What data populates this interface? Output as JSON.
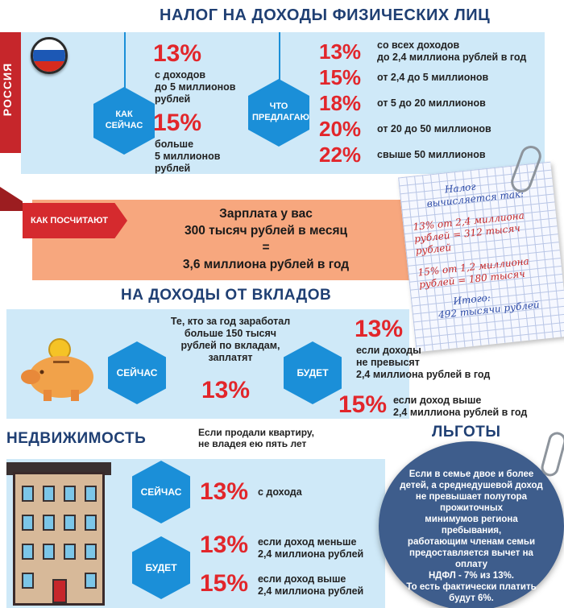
{
  "section1": {
    "title": "НАЛОГ НА ДОХОДЫ ФИЗИЧЕСКИХ ЛИЦ",
    "country": "РОССИЯ",
    "now_label": "КАК СЕЙЧАС",
    "now_items": [
      {
        "pct": "13%",
        "text_lines": [
          "с доходов",
          "до 5 миллионов",
          "рублей"
        ]
      },
      {
        "pct": "15%",
        "text_lines": [
          "больше",
          "5 миллионов",
          "рублей"
        ]
      }
    ],
    "proposal_label": "ЧТО ПРЕДЛАГАЮТ",
    "proposal_items": [
      {
        "pct": "13%",
        "text_lines": [
          "со всех доходов",
          "до 2,4 миллиона рублей в год"
        ]
      },
      {
        "pct": "15%",
        "text_lines": [
          "от 2,4 до 5 миллионов"
        ]
      },
      {
        "pct": "18%",
        "text_lines": [
          "от 5 до 20 миллионов"
        ]
      },
      {
        "pct": "20%",
        "text_lines": [
          "от 20 до 50 миллионов"
        ]
      },
      {
        "pct": "22%",
        "text_lines": [
          "свыше 50 миллионов"
        ]
      }
    ]
  },
  "calc": {
    "banner": "КАК ПОСЧИТАЮТ",
    "line1": "Зарплата у вас",
    "line2": "300 тысяч рублей в месяц",
    "line3": "=",
    "line4": "3,6 миллиона рублей в год"
  },
  "note": {
    "lines": [
      "Налог",
      "вычисляется так:",
      "13% от 2,4 миллиона",
      "рублей = 312 тысяч рублей",
      "15% от 1,2 миллиона",
      "рублей = 180 тысяч",
      "Итого:",
      "492 тысячи рублей"
    ]
  },
  "section2": {
    "title": "НА ДОХОДЫ ОТ ВКЛАДОВ",
    "now_label": "СЕЙЧАС",
    "now_text_lines": [
      "Те, кто за год заработал",
      "больше 150 тысяч",
      "рублей по вкладам,",
      "заплатят"
    ],
    "now_pct": "13%",
    "will_label": "БУДЕТ",
    "will_items": [
      {
        "pct": "13%",
        "text_lines": [
          "если доходы",
          "не превысят",
          "2,4 миллиона рублей в год"
        ]
      },
      {
        "pct": "15%",
        "text_lines": [
          "если доход выше",
          "2,4 миллиона рублей в год"
        ]
      }
    ]
  },
  "section3": {
    "title": "НЕДВИЖИМОСТЬ",
    "subtitle_lines": [
      "Если продали квартиру,",
      "не владея ею пять лет"
    ],
    "now_label": "СЕЙЧАС",
    "now_pct": "13%",
    "now_text": "с дохода",
    "will_label": "БУДЕТ",
    "will_items": [
      {
        "pct": "13%",
        "text_lines": [
          "если доход меньше",
          "2,4 миллиона рублей"
        ]
      },
      {
        "pct": "15%",
        "text_lines": [
          "если доход выше",
          "2,4 миллиона рублей"
        ]
      }
    ]
  },
  "benefits": {
    "title": "ЛЬГОТЫ",
    "text_lines": [
      "Если в семье двое и более",
      "детей, а среднедушевой доход",
      "не превышает полутора прожиточных",
      "минимумов региона пребывания,",
      "работающим членам семьи",
      "предоставляется вычет на оплату",
      "НДФЛ - 7% из 13%.",
      "То есть фактически платить",
      "будут 6%."
    ]
  }
}
